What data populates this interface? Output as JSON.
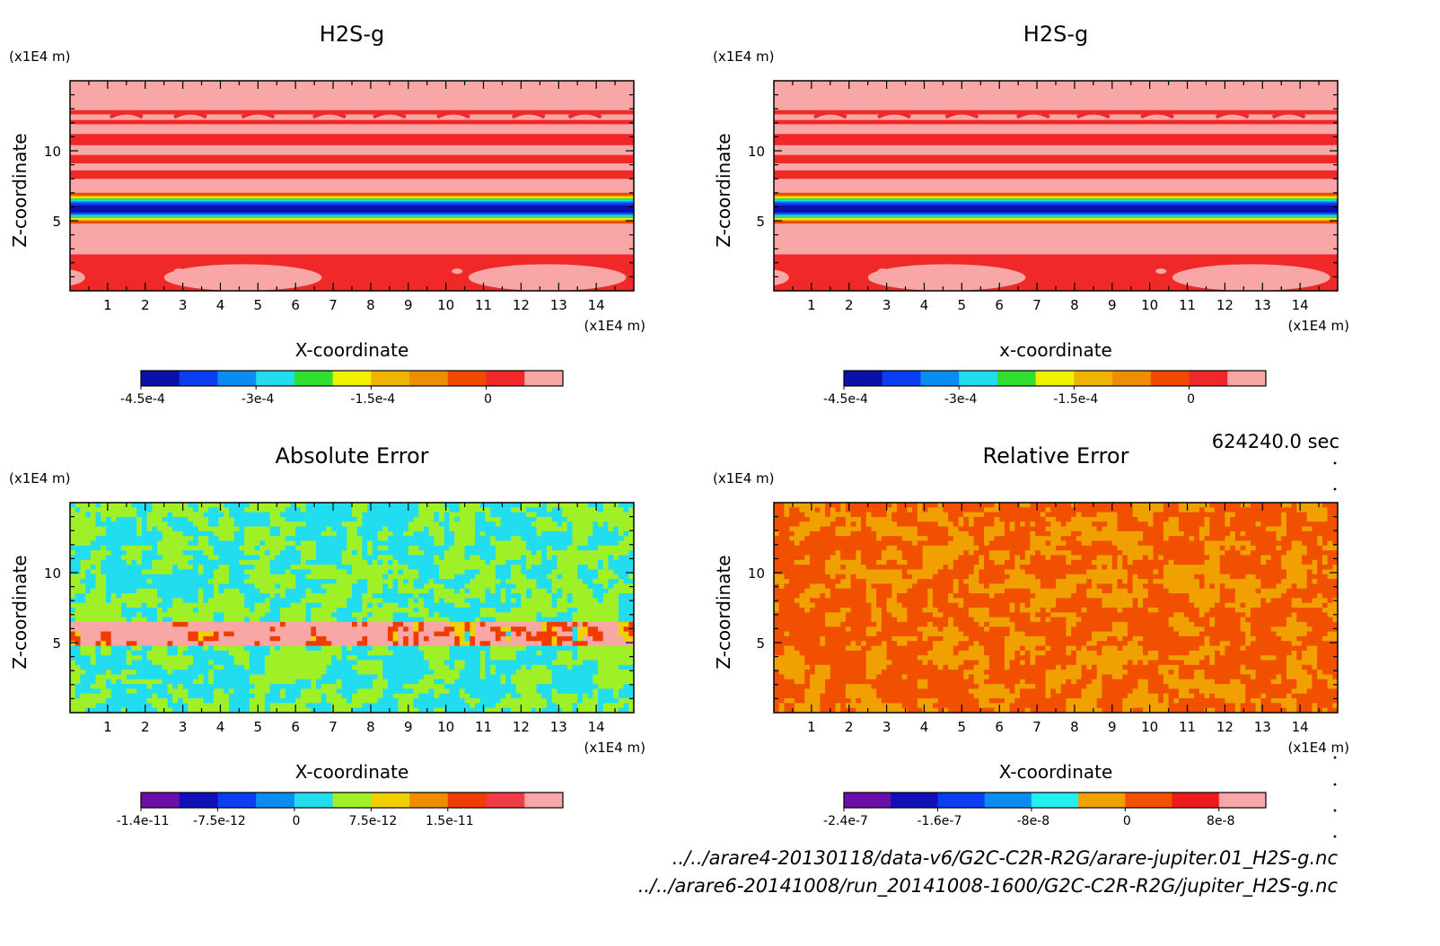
{
  "chart_data": [
    {
      "type": "heatmap",
      "title": "H2S-g",
      "xlabel": "X-coordinate",
      "ylabel": "Z-coordinate",
      "x_unit": "(x1E4 m)",
      "y_unit": "(x1E4 m)",
      "xlim": [
        0,
        15
      ],
      "ylim": [
        0,
        15
      ],
      "x_ticks": [
        "1",
        "2",
        "3",
        "4",
        "5",
        "6",
        "7",
        "8",
        "9",
        "10",
        "11",
        "12",
        "13",
        "14"
      ],
      "y_ticks": [
        "5",
        "10"
      ],
      "pattern": "layered",
      "colorbar": {
        "colors": [
          "#0a10a8",
          "#0a3ef0",
          "#0a8cf0",
          "#22dcf0",
          "#30e030",
          "#f0f000",
          "#f0b400",
          "#f08c00",
          "#f04a00",
          "#f02828",
          "#f8a6a6"
        ],
        "tick_labels": [
          "-4.5e-4",
          "-3e-4",
          "-1.5e-4",
          "0"
        ]
      }
    },
    {
      "type": "heatmap",
      "title": "H2S-g",
      "xlabel": "x-coordinate",
      "ylabel": "Z-coordinate",
      "x_unit": "(x1E4 m)",
      "y_unit": "(x1E4 m)",
      "xlim": [
        0,
        15
      ],
      "ylim": [
        0,
        15
      ],
      "x_ticks": [
        "1",
        "2",
        "3",
        "4",
        "5",
        "6",
        "7",
        "8",
        "9",
        "10",
        "11",
        "12",
        "13",
        "14"
      ],
      "y_ticks": [
        "5",
        "10"
      ],
      "pattern": "layered",
      "colorbar": {
        "colors": [
          "#0a10a8",
          "#0a3ef0",
          "#0a8cf0",
          "#22dcf0",
          "#30e030",
          "#f0f000",
          "#f0b400",
          "#f08c00",
          "#f04a00",
          "#f02828",
          "#f8a6a6"
        ],
        "tick_labels": [
          "-4.5e-4",
          "-3e-4",
          "-1.5e-4",
          "0"
        ]
      }
    },
    {
      "type": "heatmap",
      "title": "Absolute Error",
      "xlabel": "X-coordinate",
      "ylabel": "Z-coordinate",
      "x_unit": "(x1E4 m)",
      "y_unit": "(x1E4 m)",
      "xlim": [
        0,
        15
      ],
      "ylim": [
        0,
        15
      ],
      "x_ticks": [
        "1",
        "2",
        "3",
        "4",
        "5",
        "6",
        "7",
        "8",
        "9",
        "10",
        "11",
        "12",
        "13",
        "14"
      ],
      "y_ticks": [
        "5",
        "10"
      ],
      "pattern": "noise-band",
      "colorbar": {
        "colors": [
          "#6a10a8",
          "#1010b8",
          "#0a3ef0",
          "#0a8cf0",
          "#22dcf0",
          "#a0f028",
          "#f0d000",
          "#f08c00",
          "#f03c00",
          "#f03c46",
          "#f8a6a6"
        ],
        "tick_labels": [
          "-1.4e-11",
          "-7.5e-12",
          "0",
          "7.5e-12",
          "1.5e-11"
        ]
      }
    },
    {
      "type": "heatmap",
      "title": "Relative Error",
      "xlabel": "X-coordinate",
      "ylabel": "Z-coordinate",
      "x_unit": "(x1E4 m)",
      "y_unit": "(x1E4 m)",
      "xlim": [
        0,
        15
      ],
      "ylim": [
        0,
        15
      ],
      "x_ticks": [
        "1",
        "2",
        "3",
        "4",
        "5",
        "6",
        "7",
        "8",
        "9",
        "10",
        "11",
        "12",
        "13",
        "14"
      ],
      "y_ticks": [
        "5",
        "10"
      ],
      "pattern": "noise-orange",
      "colorbar": {
        "colors": [
          "#6a10a8",
          "#1010b8",
          "#0a3ef0",
          "#0a8cf0",
          "#22f0f0",
          "#f0a000",
          "#f05000",
          "#f01818",
          "#f8a6a6"
        ],
        "tick_labels": [
          "-2.4e-7",
          "-1.6e-7",
          "-8e-8",
          "0",
          "8e-8"
        ]
      }
    }
  ],
  "time_label": "624240.0 sec",
  "files": [
    "../../arare4-20130118/data-v6/G2C-C2R-R2G/arare-jupiter.01_H2S-g.nc",
    "../../arare6-20141008/run_20141008-1600/G2C-C2R-R2G/jupiter_H2S-g.nc"
  ]
}
